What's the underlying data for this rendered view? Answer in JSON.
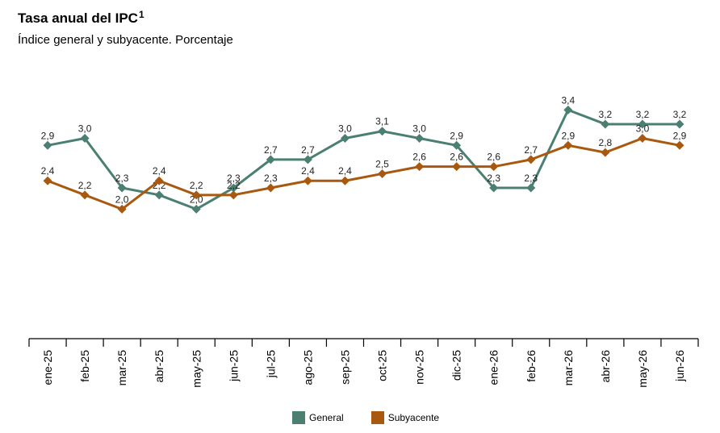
{
  "title": "Tasa anual del IPC",
  "title_sup": "1",
  "subtitle": "Índice general y subyacente. Porcentaje",
  "colors": {
    "general": "#4a7f72",
    "subyacente": "#a8590f",
    "axis": "#000000"
  },
  "chart_data": {
    "type": "line",
    "title": "Tasa anual del IPC",
    "subtitle": "Índice general y subyacente. Porcentaje",
    "categories": [
      "ene-25",
      "feb-25",
      "mar-25",
      "abr-25",
      "may-25",
      "jun-25",
      "jul-25",
      "ago-25",
      "sep-25",
      "oct-25",
      "nov-25",
      "dic-25",
      "ene-26",
      "feb-26",
      "mar-26",
      "abr-26",
      "may-26",
      "jun-26"
    ],
    "series": [
      {
        "name": "General",
        "values": [
          2.9,
          3.0,
          2.3,
          2.2,
          2.0,
          2.3,
          2.7,
          2.7,
          3.0,
          3.1,
          3.0,
          2.9,
          2.3,
          2.3,
          3.4,
          3.2,
          3.2,
          3.2
        ],
        "labels": [
          "2,9",
          "3,0",
          "2,3",
          "2,2",
          "2,0",
          "2,3",
          "2,7",
          "2,7",
          "3,0",
          "3,1",
          "3,0",
          "2,9",
          "2,3",
          "2,3",
          "3,4",
          "3,2",
          "3,2",
          "3,2"
        ]
      },
      {
        "name": "Subyacente",
        "values": [
          2.4,
          2.2,
          2.0,
          2.4,
          2.2,
          2.2,
          2.3,
          2.4,
          2.4,
          2.5,
          2.6,
          2.6,
          2.6,
          2.7,
          2.9,
          2.8,
          3.0,
          2.9
        ],
        "labels": [
          "2,4",
          "2,2",
          "2,0",
          "2,4",
          "2,2",
          "2,2",
          "2,3",
          "2,4",
          "2,4",
          "2,5",
          "2,6",
          "2,6",
          "2,6",
          "2,7",
          "2,9",
          "2,8",
          "3,0",
          "2,9"
        ]
      }
    ],
    "ylim": [
      0.4,
      3.7
    ],
    "grid": false,
    "legend": "bottom"
  },
  "legend": {
    "general": "General",
    "subyacente": "Subyacente"
  }
}
